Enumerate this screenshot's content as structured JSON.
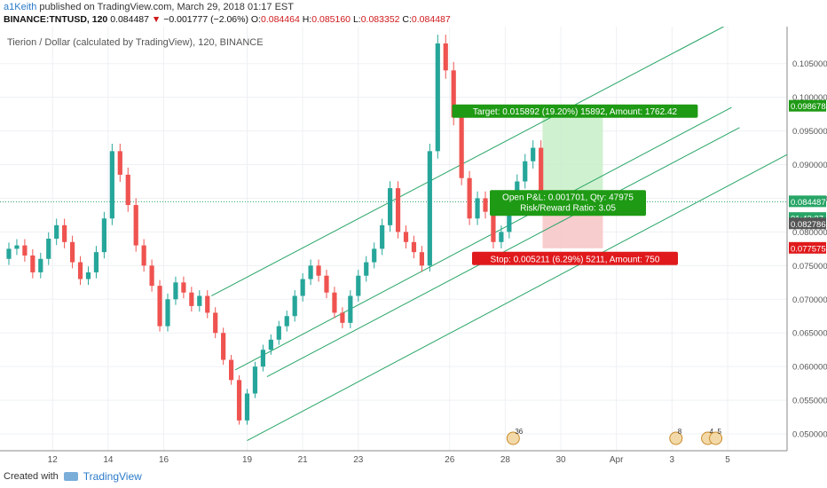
{
  "header": {
    "user": "a1Keith",
    "published": "published on TradingView.com, March 29, 2018 01:17 EST",
    "symbol": "BINANCE:TNTUSD, 120",
    "last": "0.084487",
    "change_arrow": "▼",
    "change": "−0.001777 (−2.06%)",
    "o_label": "O:",
    "o": "0.084464",
    "h_label": "H:",
    "h": "0.085160",
    "l_label": "L:",
    "l": "0.083352",
    "c_label": "C:",
    "c": "0.084487"
  },
  "chart_title": "Tierion / Dollar (calculated by TradingView), 120, BINANCE",
  "footer": {
    "created_with": "Created with",
    "brand": "TradingView"
  },
  "colors": {
    "up": "#26a69a",
    "down": "#ef5350",
    "channel": "#27a566",
    "target_bg": "#c8eec8",
    "stop_bg": "#f7c4c4",
    "label_green": "#1e9a14",
    "label_red": "#e0191c"
  },
  "chart_data": {
    "type": "candlestick",
    "title": "Tierion / Dollar (calculated by TradingView), 120, BINANCE",
    "ylim": [
      0.0475,
      0.1105
    ],
    "y_ticks": [
      "0.105000",
      "0.100000",
      "0.095000",
      "0.090000",
      "0.085000",
      "0.080000",
      "0.075000",
      "0.070000",
      "0.065000",
      "0.060000",
      "0.055000",
      "0.050000"
    ],
    "x_ticks": [
      "12",
      "14",
      "16",
      "19",
      "21",
      "23",
      "26",
      "28",
      "30",
      "Apr",
      "3",
      "5"
    ],
    "price_tags": [
      {
        "label": "0.098678",
        "color": "#1e9a14"
      },
      {
        "label": "0.084487",
        "color": "#27a566"
      },
      {
        "label": "01:42:27",
        "color": "#27a566"
      },
      {
        "label": "0.082786",
        "color": "#555555"
      },
      {
        "label": "0.077575",
        "color": "#e0191c"
      }
    ],
    "closes": [
      0.0775,
      0.078,
      0.0765,
      0.074,
      0.076,
      0.079,
      0.081,
      0.0785,
      0.0755,
      0.073,
      0.074,
      0.077,
      0.082,
      0.092,
      0.0885,
      0.084,
      0.078,
      0.075,
      0.072,
      0.066,
      0.07,
      0.0725,
      0.071,
      0.069,
      0.0705,
      0.068,
      0.065,
      0.061,
      0.058,
      0.052,
      0.056,
      0.06,
      0.0625,
      0.064,
      0.066,
      0.0675,
      0.0705,
      0.073,
      0.075,
      0.0735,
      0.071,
      0.068,
      0.0665,
      0.0705,
      0.0735,
      0.0755,
      0.0775,
      0.081,
      0.0865,
      0.08,
      0.0785,
      0.077,
      0.075,
      0.092,
      0.108,
      0.104,
      0.097,
      0.088,
      0.082,
      0.085,
      0.083,
      0.0785,
      0.08,
      0.0835,
      0.0875,
      0.0905,
      0.0925,
      0.0845
    ],
    "trade": {
      "target_label": "Target: 0.015892 (19.20%) 15892, Amount: 1762.42",
      "pnl_label": "Open P&L: 0.001701, Qty: 47975",
      "rr_label": "Risk/Reward Ratio: 3.05",
      "stop_label": "Stop: 0.005211 (6.29%) 5211, Amount: 750",
      "entry": 0.082786,
      "target": 0.098678,
      "stop": 0.077575
    },
    "events": [
      {
        "label": "36",
        "x_index": 63.5
      },
      {
        "label": "8",
        "x_index": 84
      },
      {
        "label": "4",
        "x_index": 88
      },
      {
        "label": "5",
        "x_index": 89
      }
    ]
  }
}
